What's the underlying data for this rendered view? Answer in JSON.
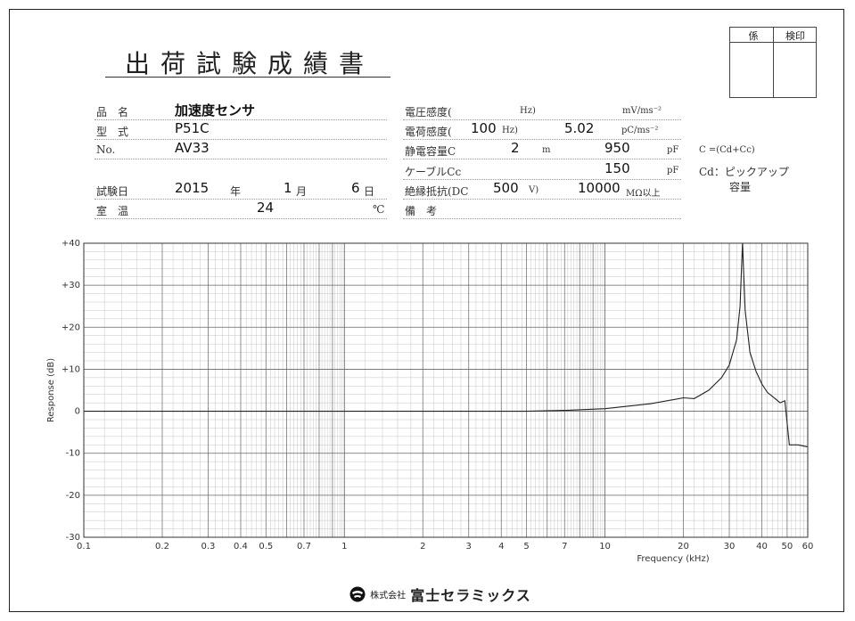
{
  "doc": {
    "title": "出荷試験成績書",
    "stamp": {
      "col1": "係",
      "col2": "検印"
    }
  },
  "left": {
    "product_name_label": "品　名",
    "product_name": "加速度センサ",
    "model_label": "型　式",
    "model": "P51C",
    "no_label": "No.",
    "no": "AV33",
    "test_date_label": "試験日",
    "year": "2015",
    "year_unit": "年",
    "month": "1",
    "month_unit": "月",
    "day": "6",
    "day_unit": "日",
    "room_temp_label": "室　温",
    "room_temp": "24",
    "room_temp_unit": "℃"
  },
  "right": {
    "voltage_sens_label": "電圧感度(",
    "voltage_hz": "Hz)",
    "voltage_unit": "mV/ms⁻²",
    "charge_sens_label": "電荷感度(",
    "charge_freq": "100",
    "charge_hz": "Hz)",
    "charge_value": "5.02",
    "charge_unit": "pC/ms⁻²",
    "capacitance_label": "静電容量C",
    "cap_length": "2",
    "cap_length_unit": "m",
    "capacitance_value": "950",
    "capacitance_unit": "pF",
    "cable_label": "ケーブルCc",
    "cable_value": "150",
    "cable_unit": "pF",
    "insulation_label": "絶縁抵抗(DC",
    "insulation_voltage": "500",
    "insulation_v": "V)",
    "insulation_value": "10000",
    "insulation_unit": "MΩ以上",
    "remarks_label": "備　考",
    "note1": "C =(Cd+Cc)",
    "note2": "Cd：ピックアップ",
    "note3": "容量"
  },
  "chart_data": {
    "type": "line",
    "xlabel": "Frequency (kHz)",
    "ylabel": "Response (dB)",
    "xscale": "log",
    "xlim": [
      0.1,
      60
    ],
    "ylim": [
      -30,
      40
    ],
    "grid": true,
    "x_ticks": [
      "0.1",
      "0.2",
      "0.3",
      "0.4",
      "0.5",
      "0.7",
      "1",
      "2",
      "3",
      "4",
      "5",
      "7",
      "10",
      "20",
      "30",
      "40",
      "50",
      "60"
    ],
    "y_ticks": [
      "+40",
      "+30",
      "+20",
      "+10",
      "0",
      "-10",
      "-20",
      "-30"
    ],
    "series": [
      {
        "x": [
          0.1,
          1,
          5,
          7,
          10,
          15,
          20,
          22,
          25,
          28,
          30,
          32,
          33,
          33.7,
          34.5,
          36,
          38,
          40,
          42,
          45,
          47,
          49,
          51,
          55,
          60
        ],
        "y": [
          0,
          0,
          0,
          0.2,
          0.6,
          1.8,
          3.2,
          3.0,
          5.0,
          8.0,
          11.0,
          17.0,
          25.0,
          40.0,
          24.0,
          14.0,
          9.5,
          6.5,
          4.5,
          3.0,
          2.0,
          2.5,
          -8.0,
          -8.0,
          -8.5
        ]
      }
    ]
  },
  "footer": {
    "company_prefix": "株式会社",
    "company_name": "富士セラミックス"
  }
}
